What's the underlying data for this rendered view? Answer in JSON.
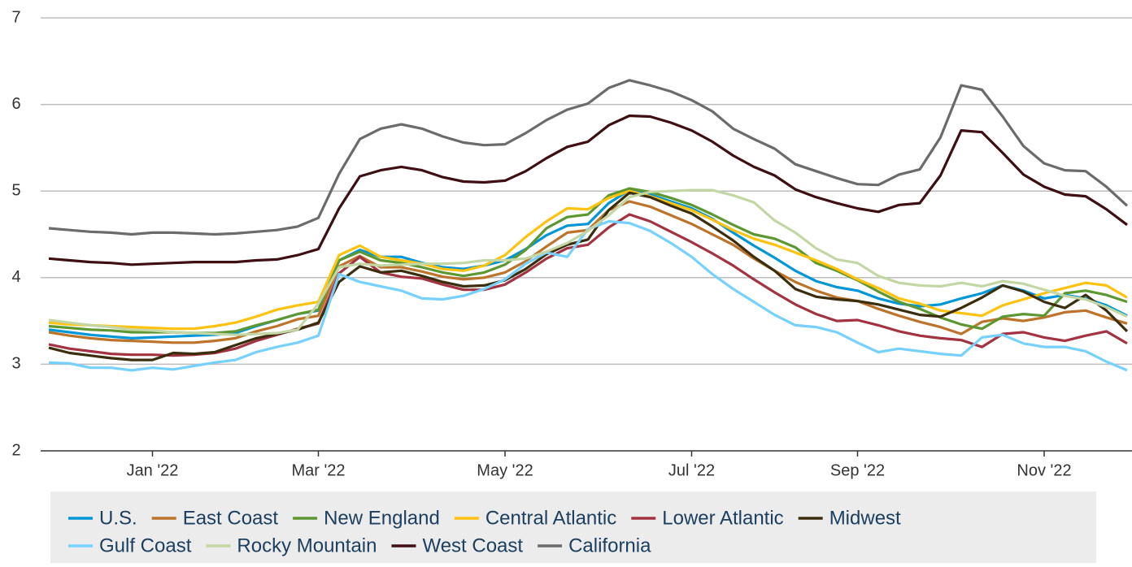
{
  "chart_data": {
    "type": "line",
    "categories": [
      null,
      null,
      null,
      null,
      null,
      "Jan '22",
      null,
      null,
      null,
      null,
      null,
      null,
      null,
      "Mar '22",
      null,
      null,
      null,
      null,
      null,
      null,
      null,
      null,
      "May '22",
      null,
      null,
      null,
      null,
      null,
      null,
      null,
      null,
      "Jul '22",
      null,
      null,
      null,
      null,
      null,
      null,
      null,
      "Sep '22",
      null,
      null,
      null,
      null,
      null,
      null,
      null,
      null,
      "Nov '22",
      null,
      null,
      null,
      null
    ],
    "ylim": [
      2,
      7
    ],
    "yticks": [
      2,
      3,
      4,
      5,
      6,
      7
    ],
    "grid": true,
    "series": [
      {
        "name": "U.S.",
        "color": "#0096d7",
        "values": [
          3.4,
          3.37,
          3.34,
          3.32,
          3.3,
          3.31,
          3.32,
          3.33,
          3.34,
          3.36,
          3.44,
          3.51,
          3.58,
          3.62,
          4.2,
          4.32,
          4.24,
          4.24,
          4.17,
          4.12,
          4.1,
          4.14,
          4.2,
          4.33,
          4.49,
          4.6,
          4.62,
          4.86,
          5.01,
          4.96,
          4.88,
          4.8,
          4.68,
          4.52,
          4.37,
          4.23,
          4.08,
          3.96,
          3.89,
          3.85,
          3.76,
          3.7,
          3.67,
          3.69,
          3.76,
          3.82,
          3.91,
          3.85,
          3.76,
          3.8,
          3.76,
          3.68,
          3.56
        ]
      },
      {
        "name": "East Coast",
        "color": "#bd732a",
        "values": [
          3.37,
          3.33,
          3.3,
          3.28,
          3.27,
          3.26,
          3.25,
          3.25,
          3.27,
          3.3,
          3.38,
          3.44,
          3.52,
          3.56,
          4.13,
          4.25,
          4.12,
          4.12,
          4.07,
          4.01,
          3.98,
          4.0,
          4.06,
          4.19,
          4.36,
          4.52,
          4.55,
          4.78,
          4.88,
          4.82,
          4.72,
          4.62,
          4.5,
          4.38,
          4.22,
          4.08,
          3.95,
          3.85,
          3.77,
          3.73,
          3.64,
          3.56,
          3.49,
          3.43,
          3.35,
          3.49,
          3.53,
          3.5,
          3.54,
          3.6,
          3.62,
          3.54,
          3.47
        ]
      },
      {
        "name": "New England",
        "color": "#5d9732",
        "values": [
          3.44,
          3.42,
          3.4,
          3.39,
          3.37,
          3.37,
          3.37,
          3.36,
          3.36,
          3.38,
          3.45,
          3.51,
          3.58,
          3.63,
          4.2,
          4.3,
          4.2,
          4.17,
          4.12,
          4.06,
          4.02,
          4.06,
          4.15,
          4.32,
          4.57,
          4.7,
          4.73,
          4.95,
          5.03,
          4.99,
          4.92,
          4.84,
          4.73,
          4.61,
          4.5,
          4.45,
          4.35,
          4.17,
          4.08,
          3.97,
          3.84,
          3.72,
          3.64,
          3.54,
          3.46,
          3.41,
          3.55,
          3.58,
          3.56,
          3.82,
          3.85,
          3.8,
          3.72
        ]
      },
      {
        "name": "Central Atlantic",
        "color": "#ffc20e",
        "values": [
          3.48,
          3.46,
          3.45,
          3.44,
          3.43,
          3.42,
          3.41,
          3.41,
          3.44,
          3.48,
          3.55,
          3.63,
          3.68,
          3.72,
          4.26,
          4.37,
          4.24,
          4.2,
          4.16,
          4.1,
          4.08,
          4.14,
          4.26,
          4.47,
          4.65,
          4.8,
          4.79,
          4.92,
          5.0,
          4.94,
          4.86,
          4.78,
          4.67,
          4.55,
          4.45,
          4.38,
          4.29,
          4.2,
          4.1,
          3.98,
          3.88,
          3.76,
          3.7,
          3.62,
          3.59,
          3.56,
          3.68,
          3.75,
          3.82,
          3.88,
          3.94,
          3.91,
          3.77
        ]
      },
      {
        "name": "Lower Atlantic",
        "color": "#a33340",
        "values": [
          3.23,
          3.18,
          3.15,
          3.12,
          3.11,
          3.11,
          3.1,
          3.11,
          3.13,
          3.18,
          3.27,
          3.34,
          3.41,
          3.47,
          4.05,
          4.24,
          4.06,
          4.01,
          3.99,
          3.92,
          3.86,
          3.86,
          3.92,
          4.06,
          4.22,
          4.34,
          4.38,
          4.58,
          4.73,
          4.65,
          4.53,
          4.41,
          4.28,
          4.14,
          3.98,
          3.83,
          3.69,
          3.58,
          3.5,
          3.51,
          3.45,
          3.38,
          3.33,
          3.3,
          3.28,
          3.2,
          3.35,
          3.37,
          3.31,
          3.27,
          3.33,
          3.38,
          3.24
        ]
      },
      {
        "name": "Midwest",
        "color": "#3b2e0e",
        "values": [
          3.19,
          3.13,
          3.1,
          3.07,
          3.05,
          3.05,
          3.13,
          3.12,
          3.14,
          3.22,
          3.3,
          3.35,
          3.4,
          3.48,
          3.95,
          4.13,
          4.06,
          4.08,
          4.02,
          3.95,
          3.9,
          3.91,
          3.97,
          4.1,
          4.27,
          4.38,
          4.44,
          4.78,
          4.98,
          4.93,
          4.83,
          4.74,
          4.59,
          4.43,
          4.24,
          4.08,
          3.87,
          3.78,
          3.75,
          3.73,
          3.69,
          3.63,
          3.57,
          3.55,
          3.65,
          3.77,
          3.91,
          3.84,
          3.72,
          3.65,
          3.8,
          3.62,
          3.38
        ]
      },
      {
        "name": "Gulf Coast",
        "color": "#76d1ff",
        "values": [
          3.02,
          3.01,
          2.96,
          2.96,
          2.93,
          2.96,
          2.94,
          2.98,
          3.02,
          3.05,
          3.14,
          3.2,
          3.25,
          3.33,
          4.04,
          3.95,
          3.9,
          3.85,
          3.76,
          3.75,
          3.79,
          3.87,
          3.98,
          4.16,
          4.29,
          4.24,
          4.56,
          4.65,
          4.63,
          4.54,
          4.4,
          4.24,
          4.04,
          3.87,
          3.72,
          3.57,
          3.45,
          3.43,
          3.37,
          3.25,
          3.14,
          3.18,
          3.15,
          3.12,
          3.1,
          3.31,
          3.34,
          3.24,
          3.2,
          3.2,
          3.15,
          3.03,
          2.93
        ]
      },
      {
        "name": "Rocky Mountain",
        "color": "#c3d7a4",
        "values": [
          3.51,
          3.48,
          3.45,
          3.43,
          3.4,
          3.39,
          3.37,
          3.36,
          3.35,
          3.34,
          3.35,
          3.36,
          3.4,
          3.7,
          4.12,
          4.16,
          4.14,
          4.15,
          4.16,
          4.16,
          4.17,
          4.2,
          4.2,
          4.22,
          4.3,
          4.4,
          4.54,
          4.72,
          4.93,
          4.99,
          5.0,
          5.01,
          5.01,
          4.95,
          4.87,
          4.66,
          4.52,
          4.34,
          4.21,
          4.17,
          4.02,
          3.94,
          3.91,
          3.9,
          3.94,
          3.9,
          3.96,
          3.93,
          3.86,
          3.79,
          3.75,
          3.66,
          3.55
        ]
      },
      {
        "name": "West Coast",
        "color": "#3d0e12",
        "values": [
          4.22,
          4.2,
          4.18,
          4.17,
          4.15,
          4.16,
          4.17,
          4.18,
          4.18,
          4.18,
          4.2,
          4.21,
          4.26,
          4.33,
          4.8,
          5.17,
          5.24,
          5.28,
          5.24,
          5.16,
          5.11,
          5.1,
          5.12,
          5.23,
          5.38,
          5.51,
          5.57,
          5.76,
          5.87,
          5.86,
          5.79,
          5.7,
          5.57,
          5.41,
          5.28,
          5.18,
          5.02,
          4.93,
          4.86,
          4.8,
          4.76,
          4.84,
          4.86,
          5.18,
          5.7,
          5.68,
          5.44,
          5.19,
          5.05,
          4.96,
          4.94,
          4.79,
          4.61
        ]
      },
      {
        "name": "California",
        "color": "#6b6b6b",
        "values": [
          4.57,
          4.55,
          4.53,
          4.52,
          4.5,
          4.52,
          4.52,
          4.51,
          4.5,
          4.51,
          4.53,
          4.55,
          4.59,
          4.69,
          5.2,
          5.6,
          5.72,
          5.77,
          5.72,
          5.63,
          5.56,
          5.53,
          5.54,
          5.67,
          5.82,
          5.94,
          6.01,
          6.19,
          6.28,
          6.22,
          6.15,
          6.05,
          5.92,
          5.72,
          5.6,
          5.49,
          5.31,
          5.23,
          5.15,
          5.08,
          5.07,
          5.19,
          5.25,
          5.62,
          6.22,
          6.17,
          5.86,
          5.52,
          5.32,
          5.24,
          5.23,
          5.05,
          4.83
        ]
      }
    ]
  }
}
